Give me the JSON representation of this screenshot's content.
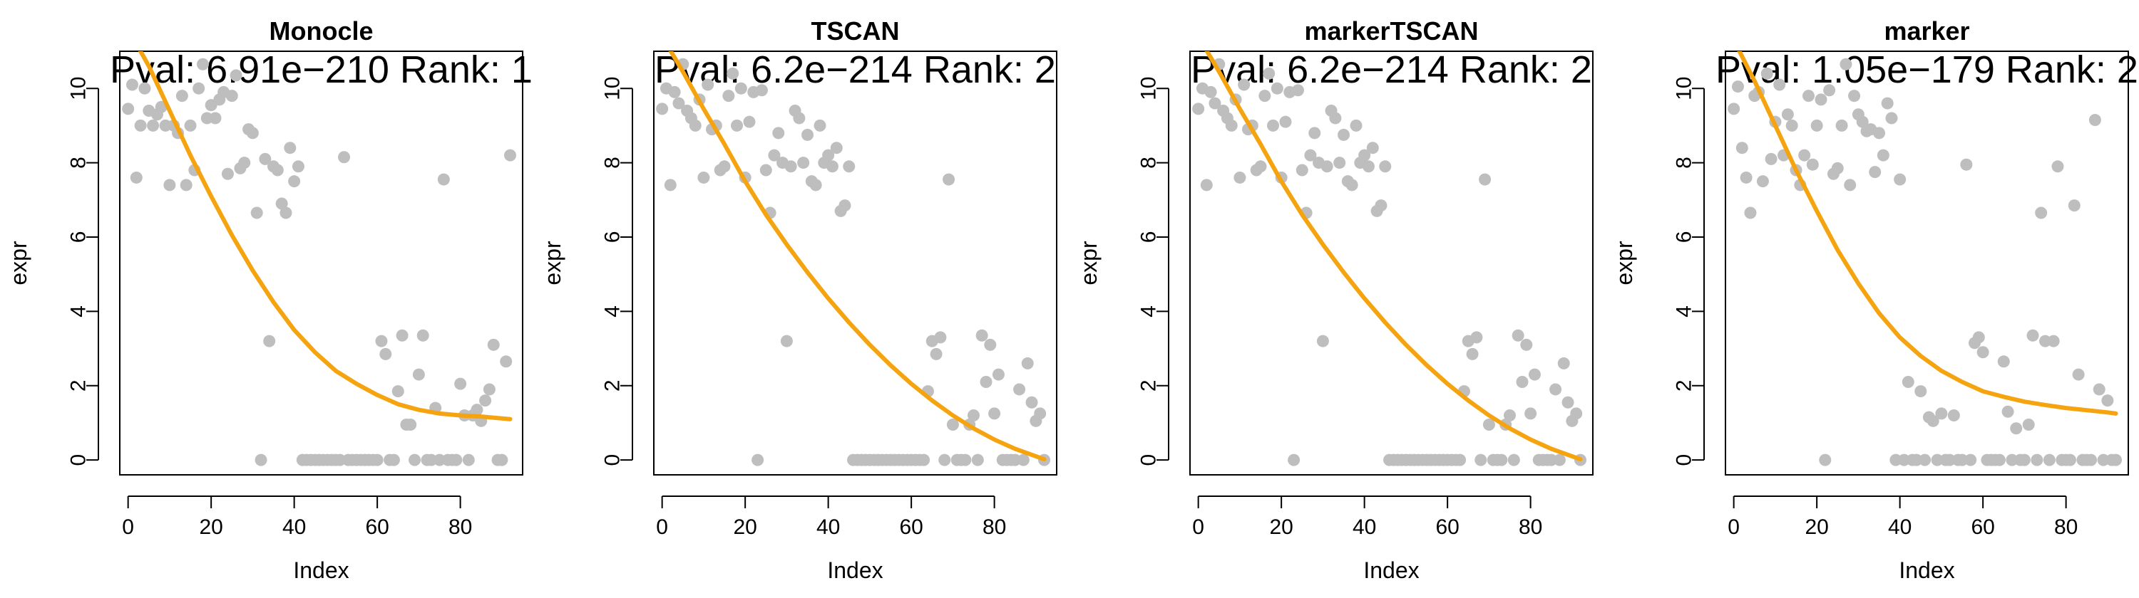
{
  "colors": {
    "points": "#bebebe",
    "curve": "#f5a30f",
    "axis": "#000000"
  },
  "chart_data": [
    {
      "type": "scatter",
      "title": "Monocle",
      "subtitle": "Pval: 6.91e−210 Rank: 1",
      "xlabel": "Index",
      "ylabel": "expr",
      "xlim": [
        -2,
        95
      ],
      "ylim": [
        -0.4,
        11.0
      ],
      "xticks": [
        0,
        20,
        40,
        60,
        80
      ],
      "yticks": [
        0,
        2,
        4,
        6,
        8,
        10
      ],
      "grid": false,
      "series": [
        {
          "type": "scatter",
          "y": [
            9.45,
            10.1,
            7.6,
            9.0,
            10.0,
            9.4,
            9.0,
            9.3,
            9.5,
            9.0,
            7.4,
            9.0,
            8.8,
            9.8,
            7.4,
            9.0,
            7.8,
            10.0,
            10.65,
            9.2,
            9.55,
            9.2,
            9.7,
            9.9,
            7.7,
            9.8,
            10.35,
            7.85,
            8.0,
            8.9,
            8.8,
            6.65,
            0.0,
            8.1,
            3.2,
            7.9,
            7.8,
            6.9,
            6.65,
            8.4,
            7.5,
            7.9,
            0.0,
            0.0,
            0.0,
            0.0,
            0.0,
            0.0,
            0.0,
            0.0,
            0.0,
            0.0,
            8.15,
            0.0,
            0.0,
            0.0,
            0.0,
            0.0,
            0.0,
            0.0,
            0.0,
            3.2,
            2.85,
            0.0,
            0.0,
            1.85,
            3.35,
            0.95,
            0.95,
            0.0,
            2.3,
            3.35,
            0.0,
            0.0,
            1.4,
            0.0,
            7.55,
            0.0,
            0.0,
            0.0,
            2.05,
            1.2,
            0.0,
            1.2,
            1.35,
            1.05,
            1.6,
            1.9,
            3.1,
            0.0,
            0.0,
            2.65,
            8.2
          ]
        },
        {
          "type": "line",
          "x": [
            0,
            5,
            10,
            15,
            20,
            25,
            30,
            35,
            40,
            45,
            50,
            55,
            60,
            65,
            70,
            75,
            80,
            85,
            90,
            92
          ],
          "y": [
            11.6,
            10.6,
            9.4,
            8.2,
            7.1,
            6.05,
            5.1,
            4.25,
            3.5,
            2.9,
            2.4,
            2.05,
            1.75,
            1.5,
            1.35,
            1.25,
            1.2,
            1.17,
            1.12,
            1.1
          ]
        }
      ]
    },
    {
      "type": "scatter",
      "title": "TSCAN",
      "subtitle": "Pval: 6.2e−214 Rank: 2",
      "xlabel": "Index",
      "ylabel": "expr",
      "xlim": [
        -2,
        95
      ],
      "ylim": [
        -0.4,
        11.0
      ],
      "xticks": [
        0,
        20,
        40,
        60,
        80
      ],
      "yticks": [
        0,
        2,
        4,
        6,
        8,
        10
      ],
      "grid": false,
      "series": [
        {
          "type": "scatter",
          "y": [
            9.45,
            10.0,
            7.4,
            9.9,
            9.6,
            10.65,
            9.4,
            9.2,
            9.0,
            9.7,
            7.6,
            10.1,
            8.9,
            9.0,
            7.8,
            7.9,
            9.8,
            10.4,
            9.0,
            10.0,
            7.6,
            9.1,
            9.9,
            0.0,
            9.95,
            7.8,
            6.65,
            8.2,
            8.8,
            8.0,
            3.2,
            7.9,
            9.4,
            9.2,
            8.0,
            8.75,
            7.5,
            7.4,
            9.0,
            8.0,
            8.2,
            7.9,
            8.4,
            6.7,
            6.85,
            7.9,
            0.0,
            0.0,
            0.0,
            0.0,
            0.0,
            0.0,
            0.0,
            0.0,
            0.0,
            0.0,
            0.0,
            0.0,
            0.0,
            0.0,
            0.0,
            0.0,
            0.0,
            0.0,
            1.85,
            3.2,
            2.85,
            3.3,
            0.0,
            7.55,
            0.95,
            0.0,
            0.0,
            0.0,
            0.95,
            1.2,
            0.0,
            3.35,
            2.1,
            3.1,
            1.25,
            2.3,
            0.0,
            0.0,
            0.0,
            0.0,
            1.9,
            0.0,
            2.6,
            1.55,
            1.05,
            1.25,
            0.0
          ]
        },
        {
          "type": "line",
          "x": [
            0,
            5,
            10,
            15,
            20,
            25,
            30,
            35,
            40,
            45,
            50,
            55,
            60,
            65,
            70,
            75,
            80,
            85,
            90,
            92
          ],
          "y": [
            11.4,
            10.45,
            9.45,
            8.5,
            7.5,
            6.6,
            5.8,
            5.05,
            4.35,
            3.7,
            3.1,
            2.55,
            2.05,
            1.6,
            1.2,
            0.85,
            0.55,
            0.3,
            0.1,
            0.02
          ]
        }
      ]
    },
    {
      "type": "scatter",
      "title": "markerTSCAN",
      "subtitle": "Pval: 6.2e−214 Rank: 2",
      "xlabel": "Index",
      "ylabel": "expr",
      "xlim": [
        -2,
        95
      ],
      "ylim": [
        -0.4,
        11.0
      ],
      "xticks": [
        0,
        20,
        40,
        60,
        80
      ],
      "yticks": [
        0,
        2,
        4,
        6,
        8,
        10
      ],
      "grid": false,
      "series": [
        {
          "type": "scatter",
          "y": [
            9.45,
            10.0,
            7.4,
            9.9,
            9.6,
            10.65,
            9.4,
            9.2,
            9.0,
            9.7,
            7.6,
            10.1,
            8.9,
            9.0,
            7.8,
            7.9,
            9.8,
            10.4,
            9.0,
            10.0,
            7.6,
            9.1,
            9.9,
            0.0,
            9.95,
            7.8,
            6.65,
            8.2,
            8.8,
            8.0,
            3.2,
            7.9,
            9.4,
            9.2,
            8.0,
            8.75,
            7.5,
            7.4,
            9.0,
            8.0,
            8.2,
            7.9,
            8.4,
            6.7,
            6.85,
            7.9,
            0.0,
            0.0,
            0.0,
            0.0,
            0.0,
            0.0,
            0.0,
            0.0,
            0.0,
            0.0,
            0.0,
            0.0,
            0.0,
            0.0,
            0.0,
            0.0,
            0.0,
            0.0,
            1.85,
            3.2,
            2.85,
            3.3,
            0.0,
            7.55,
            0.95,
            0.0,
            0.0,
            0.0,
            0.95,
            1.2,
            0.0,
            3.35,
            2.1,
            3.1,
            1.25,
            2.3,
            0.0,
            0.0,
            0.0,
            0.0,
            1.9,
            0.0,
            2.6,
            1.55,
            1.05,
            1.25,
            0.0
          ]
        },
        {
          "type": "line",
          "x": [
            0,
            5,
            10,
            15,
            20,
            25,
            30,
            35,
            40,
            45,
            50,
            55,
            60,
            65,
            70,
            75,
            80,
            85,
            90,
            92
          ],
          "y": [
            11.4,
            10.45,
            9.45,
            8.5,
            7.5,
            6.6,
            5.8,
            5.05,
            4.35,
            3.7,
            3.1,
            2.55,
            2.05,
            1.6,
            1.2,
            0.85,
            0.55,
            0.3,
            0.1,
            0.02
          ]
        }
      ]
    },
    {
      "type": "scatter",
      "title": "marker",
      "subtitle": "Pval: 1.05e−179 Rank: 2",
      "xlabel": "Index",
      "ylabel": "expr",
      "xlim": [
        -2,
        95
      ],
      "ylim": [
        -0.4,
        11.0
      ],
      "xticks": [
        0,
        20,
        40,
        60,
        80
      ],
      "yticks": [
        0,
        2,
        4,
        6,
        8,
        10
      ],
      "grid": false,
      "series": [
        {
          "type": "scatter",
          "y": [
            9.45,
            10.05,
            8.4,
            7.6,
            6.65,
            9.8,
            9.9,
            7.5,
            10.4,
            8.1,
            9.1,
            10.1,
            8.2,
            9.3,
            9.0,
            7.8,
            7.4,
            8.2,
            9.8,
            7.95,
            9.0,
            9.7,
            0.0,
            9.95,
            7.7,
            7.85,
            9.0,
            10.65,
            7.4,
            9.8,
            9.3,
            9.1,
            8.85,
            8.9,
            7.75,
            8.8,
            8.2,
            9.6,
            9.2,
            0.0,
            7.55,
            0.0,
            2.1,
            0.0,
            0.0,
            1.85,
            0.0,
            1.15,
            1.05,
            0.0,
            1.25,
            0.0,
            0.0,
            1.2,
            0.0,
            0.0,
            7.95,
            0.0,
            3.15,
            3.3,
            2.9,
            0.0,
            0.0,
            0.0,
            0.0,
            2.65,
            1.3,
            0.0,
            0.85,
            0.0,
            0.0,
            0.95,
            3.35,
            0.0,
            6.65,
            3.2,
            0.0,
            3.2,
            7.9,
            0.0,
            0.0,
            0.0,
            6.85,
            2.3,
            0.0,
            0.0,
            0.0,
            9.15,
            1.9,
            0.0,
            1.6,
            0.0,
            0.0
          ]
        },
        {
          "type": "line",
          "x": [
            0,
            5,
            10,
            15,
            20,
            25,
            30,
            35,
            40,
            45,
            50,
            55,
            60,
            65,
            70,
            75,
            80,
            85,
            90,
            92
          ],
          "y": [
            11.3,
            10.2,
            9.0,
            7.8,
            6.7,
            5.65,
            4.75,
            3.95,
            3.3,
            2.8,
            2.4,
            2.1,
            1.85,
            1.7,
            1.57,
            1.48,
            1.4,
            1.34,
            1.28,
            1.25
          ]
        }
      ]
    }
  ]
}
